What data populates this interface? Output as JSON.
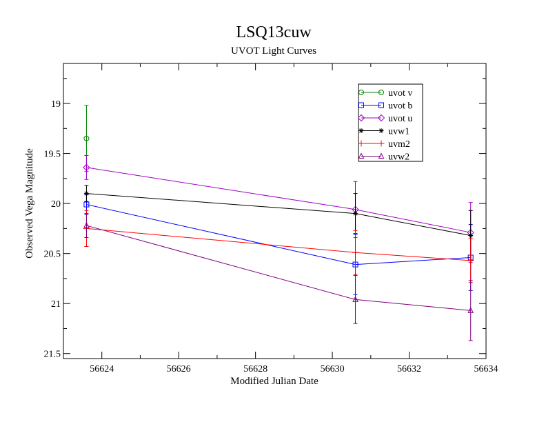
{
  "chart_data": {
    "type": "line",
    "title": "LSQ13cuw",
    "subtitle": "UVOT Light Curves",
    "xlabel": "Modified Julian Date",
    "ylabel": "Observed Vega Magnitude",
    "xlim": [
      56623,
      56634
    ],
    "ylim": [
      21.55,
      18.6
    ],
    "y_inverted": true,
    "grid": false,
    "legend_position": "top-right",
    "x_ticks": [
      56624,
      56626,
      56628,
      56630,
      56632,
      56634
    ],
    "x_tick_labels": [
      "56624",
      "56626",
      "56628",
      "56630",
      "56632",
      "56634"
    ],
    "y_ticks": [
      19,
      19.5,
      20,
      20.5,
      21,
      21.5
    ],
    "y_tick_labels": [
      "19",
      "19.5",
      "20",
      "20.5",
      "21",
      "21.5"
    ],
    "series": [
      {
        "name": "uvot v",
        "color": "#008000",
        "marker": "circle",
        "points": [
          {
            "x": 56623.6,
            "y": 19.35,
            "err": 0.33
          }
        ]
      },
      {
        "name": "uvot b",
        "color": "#0000ff",
        "marker": "square",
        "points": [
          {
            "x": 56623.6,
            "y": 20.01,
            "err": 0.1
          },
          {
            "x": 56630.6,
            "y": 20.61,
            "err": 0.3
          },
          {
            "x": 56633.6,
            "y": 20.54,
            "err": 0.33
          }
        ]
      },
      {
        "name": "uvot u",
        "color": "#a000c8",
        "marker": "diamond",
        "points": [
          {
            "x": 56623.6,
            "y": 19.64,
            "err": 0.12
          },
          {
            "x": 56630.6,
            "y": 20.06,
            "err": 0.28
          },
          {
            "x": 56633.6,
            "y": 20.29,
            "err": 0.3
          }
        ]
      },
      {
        "name": "uvw1",
        "color": "#000000",
        "marker": "star",
        "points": [
          {
            "x": 56623.6,
            "y": 19.9,
            "err": 0.08
          },
          {
            "x": 56630.6,
            "y": 20.1,
            "err": 0.2
          },
          {
            "x": 56633.6,
            "y": 20.32,
            "err": 0.25
          }
        ]
      },
      {
        "name": "uvm2",
        "color": "#ff0000",
        "marker": "plus",
        "points": [
          {
            "x": 56623.6,
            "y": 20.25,
            "err": 0.18
          },
          {
            "x": 56630.6,
            "y": 20.49,
            "err": 0.22
          },
          {
            "x": 56633.6,
            "y": 20.57,
            "err": 0.22
          }
        ]
      },
      {
        "name": "uvw2",
        "color": "#800080",
        "marker": "triangle",
        "points": [
          {
            "x": 56623.6,
            "y": 20.22,
            "err": 0.12
          },
          {
            "x": 56630.6,
            "y": 20.96,
            "err": 0.24
          },
          {
            "x": 56633.6,
            "y": 21.07,
            "err": 0.3
          }
        ]
      }
    ]
  }
}
